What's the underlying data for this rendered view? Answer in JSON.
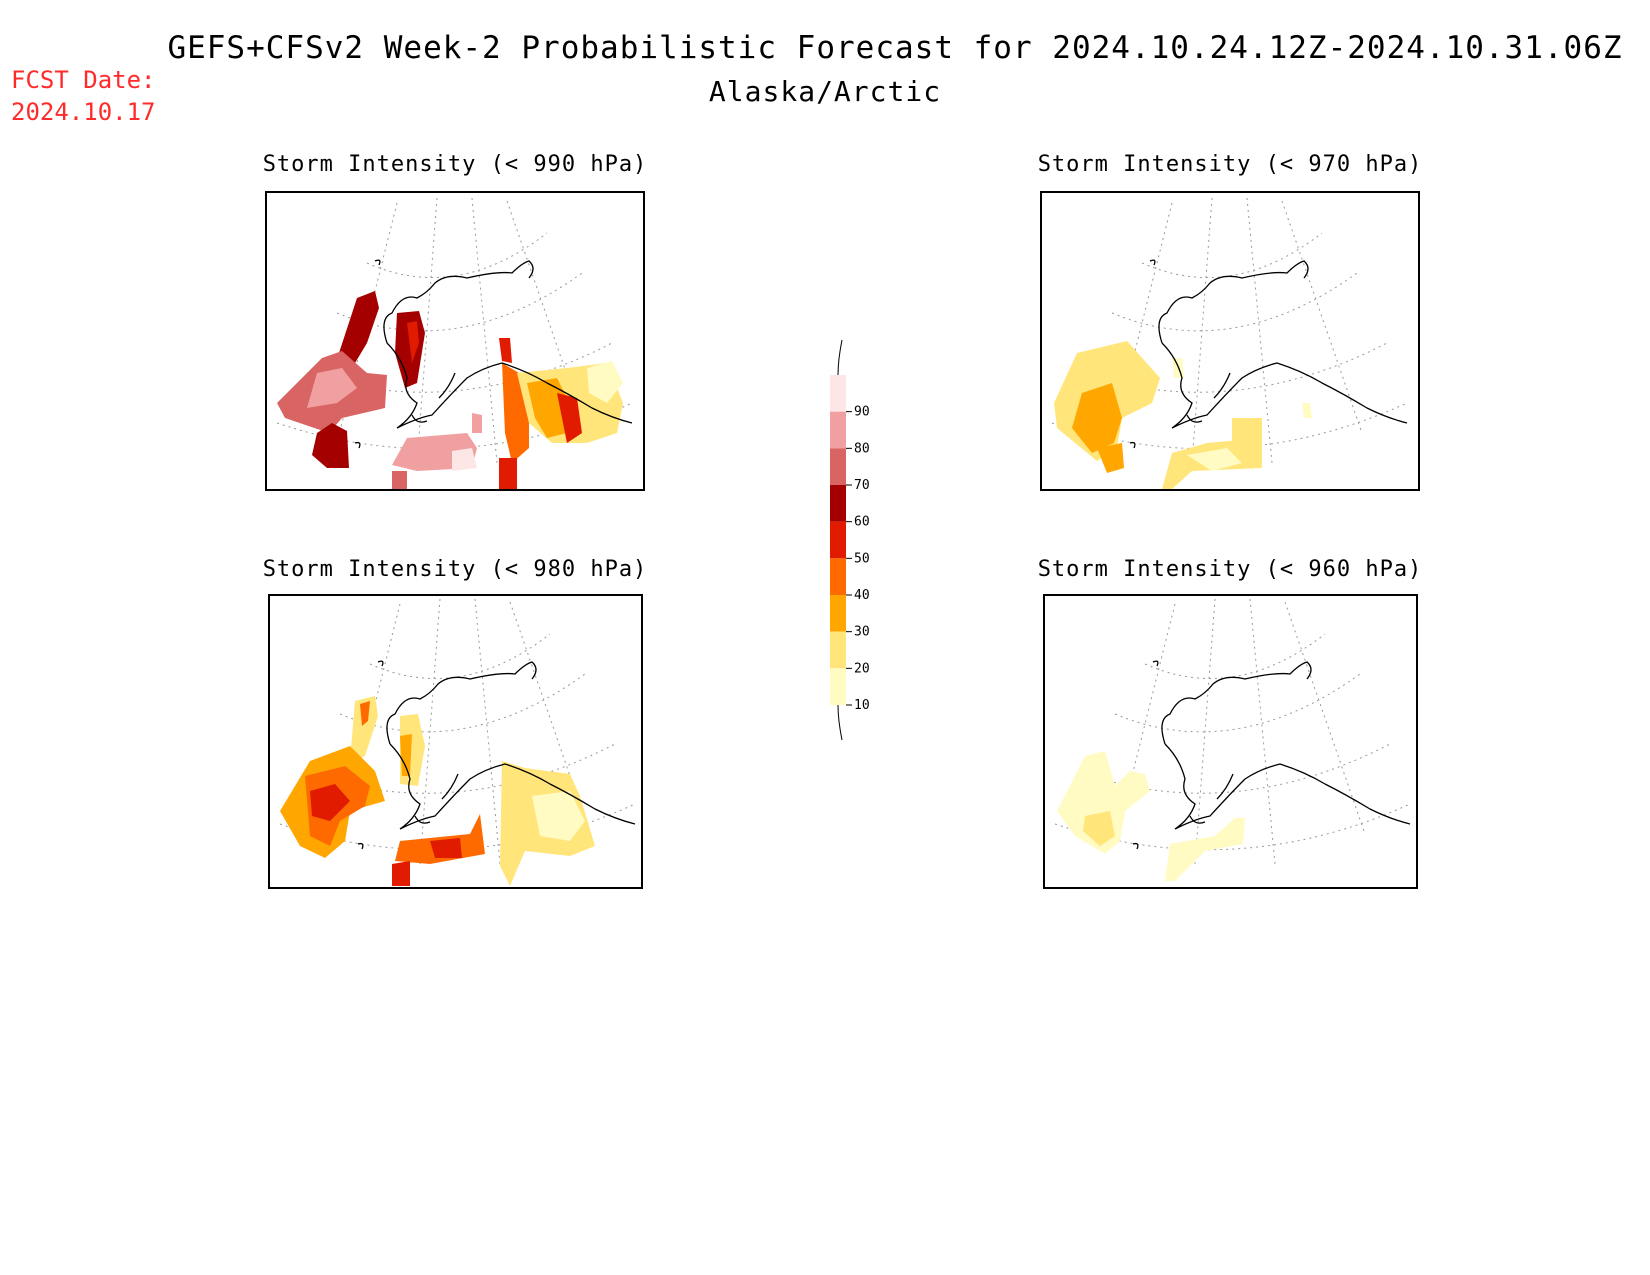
{
  "header": {
    "title": "GEFS+CFSv2 Week-2 Probabilistic Forecast for 2024.10.24.12Z-2024.10.31.06Z",
    "subtitle": "Alaska/Arctic",
    "fcst_label": "FCST Date:",
    "fcst_date": "2024.10.17"
  },
  "panels": [
    {
      "id": "p990",
      "title": "Storm Intensity (< 990 hPa)"
    },
    {
      "id": "p970",
      "title": "Storm Intensity (< 970 hPa)"
    },
    {
      "id": "p980",
      "title": "Storm Intensity (< 980 hPa)"
    },
    {
      "id": "p960",
      "title": "Storm Intensity (< 960 hPa)"
    }
  ],
  "legend": {
    "ticks": [
      "90",
      "80",
      "70",
      "60",
      "50",
      "40",
      "30",
      "20",
      "10"
    ],
    "colors": {
      "10": "#fffbc2",
      "20": "#ffe57a",
      "30": "#ffa600",
      "40": "#ff6a00",
      "50": "#e01b00",
      "60": "#a50000",
      "70": "#d96464",
      "80": "#f0a0a0",
      "90": "#fde6e6"
    }
  }
}
